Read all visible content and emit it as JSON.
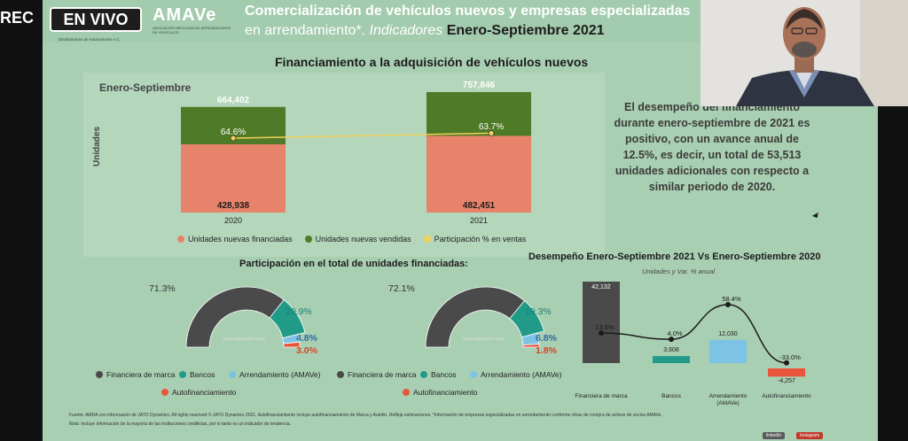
{
  "overlay": {
    "rec_label": "REC",
    "live_label": "EN VIVO"
  },
  "logo": {
    "name": "AMAVe",
    "subtitle": "ASOCIACIÓN MEXICANA DE ARRENDADORAS DE VEHÍCULOS",
    "distributor_text": "Distribuidores de Automotores A.C."
  },
  "slide": {
    "title_line1": "Comercialización de vehículos nuevos y empresas especializadas",
    "title_line2_plain": "en arrendamiento*.",
    "title_line2_italic": "Indicadores",
    "title_line2_bold": "Enero-Septiembre 2021",
    "section_title": "Financiamiento a la adquisición de vehículos nuevos",
    "period_label": "Enero-Septiembre",
    "description": "El desempeño del financiamiento durante enero-septiembre de 2021 es positivo, con un avance anual de 12.5%, es decir, un total de 53,513 unidades adicionales con respecto a similar periodo de 2020.",
    "participation_title": "Participación en el total de unidades financiadas:",
    "performance_title": "Desempeño Enero-Septiembre 2021 Vs Enero-Septiembre 2020",
    "performance_subtitle": "Unidades y Var. % anual",
    "footnote_1": "Fuente: AMDA con información de JATO Dynamics. All rights reserved © JATO Dynamics 2021. Autofinanciamiento incluye autofinanciamiento de Marca y Autofin. Refleja estimaciones. *Información de empresas especializadas en arrendamiento conforme cifras de compra de activos de socios AMAVe.",
    "footnote_2": "Nota: Incluye información de la mayoría de las instituciones crediticias, por lo tanto es un indicador de tendencia.",
    "badge_1": "linkedIn",
    "badge_2": "Instagram"
  },
  "colors": {
    "financed": "#e8836b",
    "sold": "#4f7a27",
    "participation": "#f2d15a",
    "marca": "#4a4a4a",
    "bancos": "#229a88",
    "arrendamiento": "#7cc3e6",
    "autofin": "#e8553a",
    "slide_bg": "#a9cfb2"
  },
  "chart_data": [
    {
      "type": "bar",
      "stacked": true,
      "categories": [
        "2020",
        "2021"
      ],
      "ylabel": "Unidades",
      "series": [
        {
          "name": "Unidades nuevas financiadas",
          "values": [
            428938,
            482451
          ],
          "labels": [
            "428,938",
            "482,451"
          ]
        },
        {
          "name": "Unidades nuevas vendidas",
          "values": [
            664402,
            757846
          ],
          "labels": [
            "664,402",
            "757,846"
          ]
        },
        {
          "name": "Participación % en ventas",
          "values": [
            64.6,
            63.7
          ],
          "labels": [
            "64.6%",
            "63.7%"
          ]
        }
      ],
      "legend_position": "bottom"
    },
    {
      "type": "pie",
      "subtype": "half-donut",
      "center_label": "Enero-septiembre 2020",
      "slices": [
        {
          "name": "Financiera de marca",
          "value": 71.3,
          "label": "71.3%"
        },
        {
          "name": "Bancos",
          "value": 20.9,
          "label": "20.9%"
        },
        {
          "name": "Arrendamiento (AMAVe)",
          "value": 4.8,
          "label": "4.8%"
        },
        {
          "name": "Autofinanciamiento",
          "value": 3.0,
          "label": "3.0%"
        }
      ]
    },
    {
      "type": "pie",
      "subtype": "half-donut",
      "center_label": "Enero-septiembre 2021",
      "slices": [
        {
          "name": "Financiera de marca",
          "value": 72.1,
          "label": "72.1%"
        },
        {
          "name": "Bancos",
          "value": 19.3,
          "label": "19.3%"
        },
        {
          "name": "Arrendamiento (AMAVe)",
          "value": 6.8,
          "label": "6.8%"
        },
        {
          "name": "Autofinanciamiento",
          "value": 1.8,
          "label": "1.8%"
        }
      ]
    },
    {
      "type": "bar",
      "subtype": "bar-with-line",
      "categories": [
        "Financiera de marca",
        "Bancos",
        "Arrendamiento (AMAVe)",
        "Autofinanciamiento"
      ],
      "category_labels": [
        "Financiera de marca",
        "Bancos",
        "Arrendamiento\n(AMAVe)",
        "Autofinanciamiento"
      ],
      "series": [
        {
          "name": "Unidades",
          "values": [
            42132,
            3608,
            12030,
            -4257
          ],
          "labels": [
            "42,132",
            "3,608",
            "12,030",
            "-4,257"
          ]
        },
        {
          "name": "Var. % anual",
          "values": [
            13.8,
            4.0,
            58.4,
            -33.0
          ],
          "labels": [
            "13.8%",
            "4.0%",
            "58.4%",
            "-33.0%"
          ]
        }
      ]
    }
  ],
  "legend_pie": [
    "Financiera de marca",
    "Bancos",
    "Arrendamiento (AMAVe)",
    "Autofinanciamiento"
  ]
}
